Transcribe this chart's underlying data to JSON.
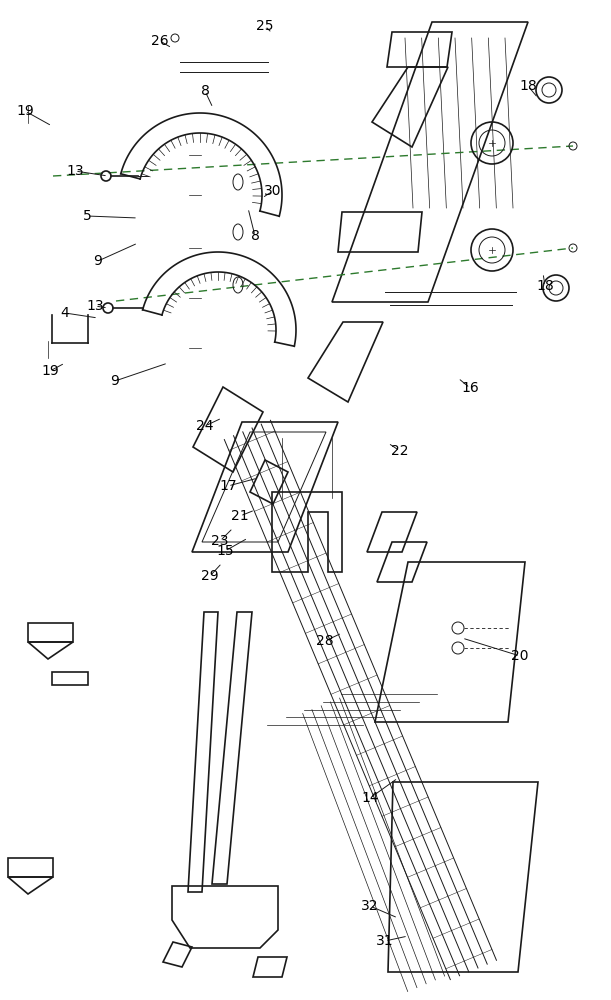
{
  "bg_color": "#ffffff",
  "line_color": "#1a1a1a",
  "label_color": "#000000",
  "dashed_color": "#2d7a2d",
  "accent_color": "#c8a0c8"
}
